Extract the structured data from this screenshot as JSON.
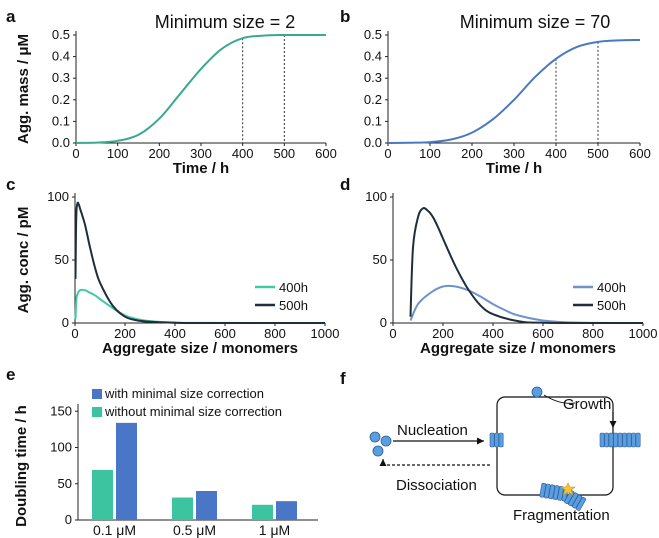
{
  "panel_labels": {
    "a": "a",
    "b": "b",
    "c": "c",
    "d": "d",
    "e": "e",
    "f": "f"
  },
  "colors": {
    "teal": "#3aa98f",
    "teal_light": "#40c9a6",
    "blue": "#4a78c2",
    "blue_light": "#6f93c8",
    "dark": "#1f2e3a",
    "bar_teal": "#3cc4a0",
    "bar_blue": "#4a76c7",
    "diagram_blue": "#5b9ee0"
  },
  "chart_data": [
    {
      "panel": "a",
      "type": "line",
      "title": "Minimum size = 2",
      "xlabel": "Time / h",
      "ylabel": "Agg. mass / μM",
      "xlim": [
        0,
        600
      ],
      "ylim": [
        0,
        0.5
      ],
      "xticks": [
        "0",
        "100",
        "200",
        "300",
        "400",
        "500",
        "600"
      ],
      "yticks": [
        "0.0",
        "0.1",
        "0.2",
        "0.3",
        "0.4",
        "0.5"
      ],
      "vlines": [
        400,
        500
      ],
      "series": [
        {
          "color": "#3aa98f",
          "x": [
            0,
            50,
            100,
            150,
            200,
            250,
            300,
            350,
            400,
            450,
            500,
            550,
            600
          ],
          "y": [
            0.0,
            0.002,
            0.01,
            0.038,
            0.113,
            0.228,
            0.343,
            0.436,
            0.485,
            0.497,
            0.5,
            0.5,
            0.5
          ]
        }
      ]
    },
    {
      "panel": "b",
      "type": "line",
      "title": "Minimum size = 70",
      "xlabel": "Time / h",
      "ylabel": "",
      "xlim": [
        0,
        600
      ],
      "ylim": [
        0,
        0.5
      ],
      "xticks": [
        "0",
        "100",
        "200",
        "300",
        "400",
        "500",
        "600"
      ],
      "yticks": [
        "0.0",
        "0.1",
        "0.2",
        "0.3",
        "0.4",
        "0.5"
      ],
      "vlines": [
        400,
        500
      ],
      "series": [
        {
          "color": "#4a78c2",
          "x": [
            0,
            50,
            100,
            150,
            200,
            250,
            300,
            350,
            400,
            450,
            500,
            550,
            600
          ],
          "y": [
            0.0,
            0.001,
            0.004,
            0.016,
            0.048,
            0.11,
            0.2,
            0.305,
            0.39,
            0.445,
            0.468,
            0.475,
            0.477
          ]
        }
      ]
    },
    {
      "panel": "c",
      "type": "line",
      "title": "",
      "xlabel": "Aggregate size / monomers",
      "ylabel": "Agg. conc / pM",
      "xlim": [
        0,
        1000
      ],
      "ylim": [
        0,
        100
      ],
      "xticks": [
        "0",
        "200",
        "400",
        "600",
        "800",
        "1000"
      ],
      "yticks": [
        "0",
        "50",
        "100"
      ],
      "legend": "bottom-right",
      "series": [
        {
          "name": "400h",
          "color": "#40c9a6",
          "x": [
            2,
            5,
            10,
            20,
            40,
            60,
            80,
            100,
            150,
            200,
            250,
            300,
            400,
            500,
            1000
          ],
          "y": [
            3,
            18,
            23,
            26,
            26,
            24,
            22,
            19,
            12,
            6,
            3,
            1.5,
            0.3,
            0.05,
            0
          ]
        },
        {
          "name": "500h",
          "color": "#1f2e3a",
          "x": [
            2,
            5,
            10,
            15,
            20,
            40,
            60,
            80,
            100,
            150,
            200,
            250,
            300,
            400,
            500,
            1000
          ],
          "y": [
            35,
            85,
            95,
            94,
            91,
            78,
            60,
            44,
            32,
            14,
            5,
            2,
            1,
            0.2,
            0,
            0
          ]
        }
      ]
    },
    {
      "panel": "d",
      "type": "line",
      "title": "",
      "xlabel": "Aggregate size / monomers",
      "ylabel": "",
      "xlim": [
        0,
        1000
      ],
      "ylim": [
        0,
        100
      ],
      "xticks": [
        "0",
        "200",
        "400",
        "600",
        "800",
        "1000"
      ],
      "yticks": [
        "0",
        "50",
        "100"
      ],
      "legend": "bottom-right",
      "series": [
        {
          "name": "400h",
          "color": "#6f93c8",
          "x": [
            70,
            100,
            150,
            200,
            250,
            300,
            350,
            400,
            450,
            500,
            600,
            700,
            800,
            1000
          ],
          "y": [
            2,
            15,
            24,
            29,
            29,
            26,
            21,
            15,
            10,
            6,
            2,
            0.5,
            0.1,
            0
          ]
        },
        {
          "name": "500h",
          "color": "#1f2e3a",
          "x": [
            70,
            80,
            100,
            120,
            140,
            160,
            180,
            200,
            250,
            300,
            350,
            400,
            500,
            600,
            1000
          ],
          "y": [
            5,
            60,
            84,
            91,
            89,
            84,
            76,
            67,
            45,
            27,
            14,
            7,
            1.5,
            0.2,
            0
          ]
        }
      ]
    },
    {
      "panel": "e",
      "type": "bar",
      "title": "",
      "xlabel": "",
      "ylabel": "Doubling time / h",
      "ylim": [
        0,
        160
      ],
      "yticks": [
        "0",
        "50",
        "100",
        "150"
      ],
      "legend": "top",
      "categories": [
        "0.1 μM",
        "0.5 μM",
        "1 μM"
      ],
      "series": [
        {
          "name": "with minimal size correction",
          "color": "#4a76c7",
          "values": [
            134,
            40,
            26
          ]
        },
        {
          "name": "without minimal size correction",
          "color": "#3cc4a0",
          "values": [
            69,
            31,
            21
          ]
        }
      ]
    }
  ],
  "diagram": {
    "nucleation": "Nucleation",
    "growth": "Growth",
    "dissociation": "Dissociation",
    "fragmentation": "Fragmentation"
  }
}
